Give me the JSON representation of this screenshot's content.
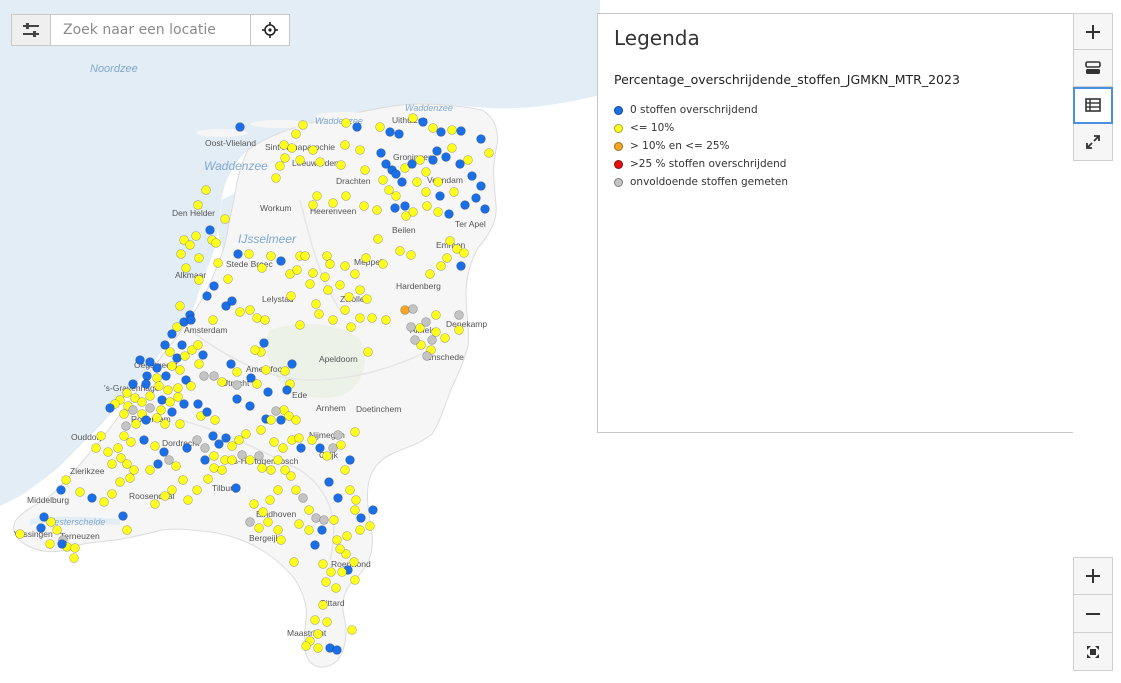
{
  "search": {
    "placeholder": "Zoek naar een locatie",
    "filter_icon": "sliders-icon",
    "locate_icon": "crosshair-icon"
  },
  "legend": {
    "title": "Legenda",
    "layer_name": "Percentage_overschrijdende_stoffen_JGMKN_MTR_2023",
    "items": [
      {
        "label": "0 stoffen overschrijdend",
        "color": "#1a6ee6"
      },
      {
        "label": "<= 10%",
        "color": "#ffff1e"
      },
      {
        "label": "> 10% en <= 25%",
        "color": "#f5a623"
      },
      {
        "label": ">25 % stoffen overschrijdend",
        "color": "#e01010"
      },
      {
        "label": "onvoldoende stoffen gemeten",
        "color": "#c4c4c4"
      }
    ]
  },
  "map_labels": {
    "sea": [
      "Noordzee",
      "Waddenzee",
      "Waddenzee",
      "Waddenzee",
      "IJsselmeer",
      "Westerschelde"
    ],
    "places": [
      "Oost-Vlieland",
      "Sint-Annaparochie",
      "Leeuwarden",
      "Drachten",
      "Den Helder",
      "Workum",
      "Heerenveen",
      "Beilen",
      "Ter Apel",
      "Uithuizen",
      "Groningen",
      "Veendam",
      "Emmen",
      "Stede Broec",
      "Alkmaar",
      "Lelystad",
      "Meppel",
      "Zwolle",
      "Hardenberg",
      "Denekamp",
      "Almelo",
      "Enschede",
      "Amsterdam",
      "Oegstgeest",
      "'s-Gravenhage",
      "Rotterdam",
      "Utrecht",
      "Amersfoort",
      "Apeldoorn",
      "Ede",
      "Arnhem",
      "Doetinchem",
      "Nijmegen",
      "Ouddorp",
      "Dordrecht",
      "Zierikzee",
      "'s-Hertogenbosch",
      "Cuijk",
      "Middelburg",
      "Roosendaal",
      "Tilburg",
      "Eindhoven",
      "Vlissingen",
      "Terneuzen",
      "Bergeijk",
      "Roermond",
      "Sittard",
      "Maastricht"
    ]
  },
  "tools": {
    "top": [
      {
        "name": "zoom-in-button",
        "icon": "plus-icon"
      },
      {
        "name": "layers-button",
        "icon": "layers-icon"
      },
      {
        "name": "legend-button",
        "icon": "table-icon",
        "active": true
      },
      {
        "name": "fullscreen-button",
        "icon": "expand-icon"
      }
    ],
    "bottom": [
      {
        "name": "zoom-in-button",
        "icon": "plus-icon"
      },
      {
        "name": "zoom-out-button",
        "icon": "minus-icon"
      },
      {
        "name": "zoom-extent-button",
        "icon": "extent-icon"
      }
    ]
  }
}
